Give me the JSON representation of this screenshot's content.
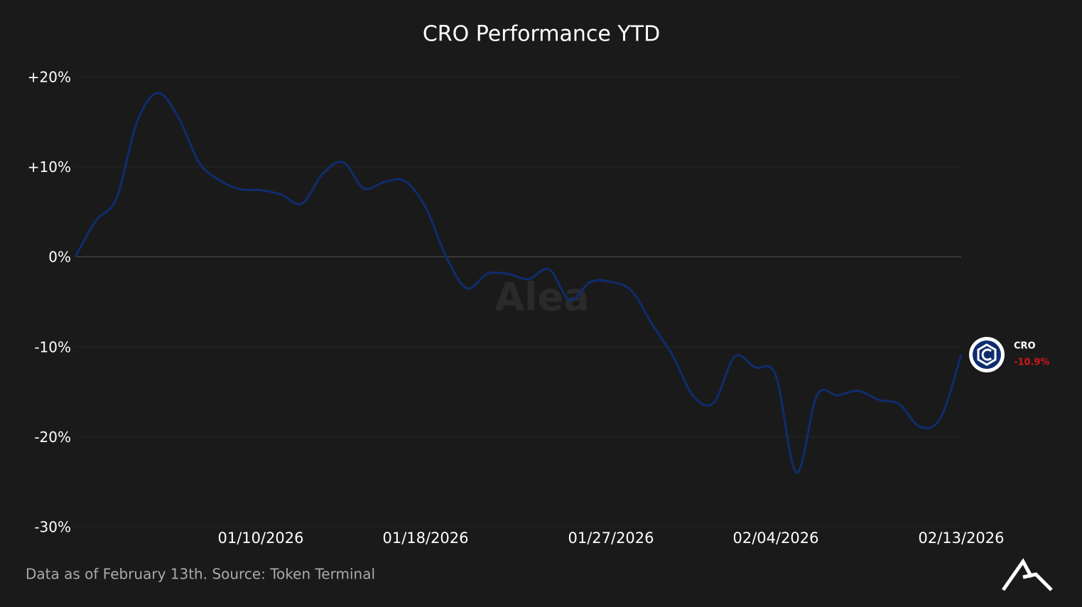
{
  "chart_data": {
    "type": "line",
    "title": "CRO Performance YTD",
    "x": [
      "01/01/2026",
      "01/02/2026",
      "01/03/2026",
      "01/04/2026",
      "01/05/2026",
      "01/06/2026",
      "01/07/2026",
      "01/08/2026",
      "01/09/2026",
      "01/10/2026",
      "01/11/2026",
      "01/12/2026",
      "01/13/2026",
      "01/14/2026",
      "01/15/2026",
      "01/16/2026",
      "01/17/2026",
      "01/18/2026",
      "01/19/2026",
      "01/20/2026",
      "01/21/2026",
      "01/22/2026",
      "01/23/2026",
      "01/24/2026",
      "01/25/2026",
      "01/26/2026",
      "01/27/2026",
      "01/28/2026",
      "01/29/2026",
      "01/30/2026",
      "01/31/2026",
      "02/01/2026",
      "02/02/2026",
      "02/03/2026",
      "02/04/2026",
      "02/05/2026",
      "02/06/2026",
      "02/07/2026",
      "02/08/2026",
      "02/09/2026",
      "02/10/2026",
      "02/11/2026",
      "02/12/2026",
      "02/13/2026"
    ],
    "series": [
      {
        "name": "CRO",
        "color": "#0f2d6e",
        "values": [
          0,
          4,
          6.5,
          15,
          18.2,
          15.5,
          10.5,
          8.5,
          7.5,
          7.4,
          6.9,
          5.9,
          9.2,
          10.5,
          7.6,
          8.3,
          8.4,
          5.5,
          0,
          -3.5,
          -1.9,
          -1.9,
          -2.5,
          -1.4,
          -4.8,
          -2.8,
          -2.8,
          -3.8,
          -7.5,
          -11,
          -15.5,
          -16.2,
          -11.1,
          -12.3,
          -13.2,
          -24,
          -15.4,
          -15.4,
          -14.9,
          -15.9,
          -16.4,
          -18.9,
          -17.9,
          -10.9
        ],
        "value_labels": [
          null,
          null,
          null,
          null,
          null,
          null,
          null,
          null,
          null,
          null,
          null,
          null,
          null,
          null,
          null,
          null,
          null,
          null,
          null,
          null,
          null,
          null,
          null,
          null,
          null,
          null,
          null,
          null,
          null,
          null,
          null,
          null,
          null,
          null,
          null,
          null,
          null,
          null,
          null,
          null,
          null,
          null,
          null,
          "-10.9%"
        ]
      }
    ],
    "xlim": [
      "01/01/2026",
      "02/13/2026"
    ],
    "xticks": [
      "01/10/2026",
      "01/18/2026",
      "01/27/2026",
      "02/04/2026",
      "02/13/2026"
    ],
    "ylim": [
      -30,
      20
    ],
    "yticks": [
      {
        "value": 20,
        "label": "+20%"
      },
      {
        "value": 10,
        "label": "+10%"
      },
      {
        "value": 0,
        "label": "0%"
      },
      {
        "value": -10,
        "label": "-10%"
      },
      {
        "value": -20,
        "label": "-20%"
      },
      {
        "value": -30,
        "label": "-30%"
      }
    ],
    "grid": true,
    "watermark": "Alea",
    "footnote": "Data as of February 13th. Source: Token Terminal"
  }
}
